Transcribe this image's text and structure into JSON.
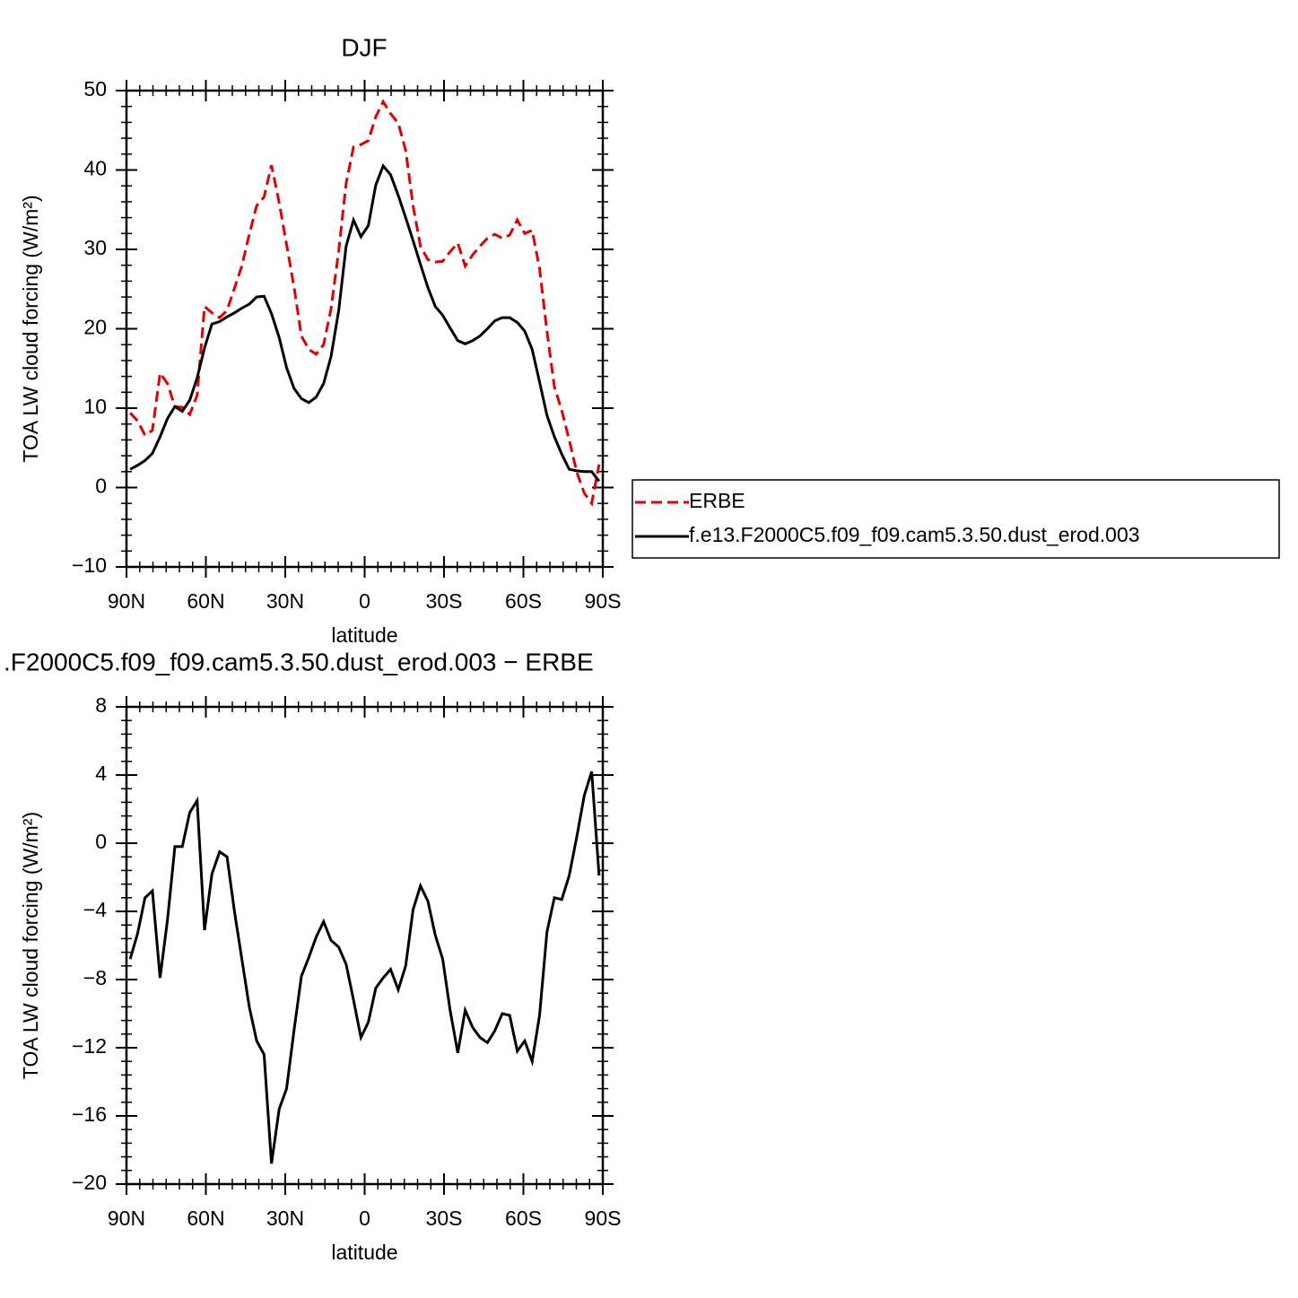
{
  "chart_data": [
    {
      "type": "line",
      "title": "DJF",
      "xlabel": "latitude",
      "ylabel": "TOA LW cloud forcing (W/m²)",
      "x": [
        88.6,
        85.8,
        83.0,
        80.2,
        77.3,
        74.5,
        71.7,
        68.9,
        66.1,
        63.3,
        60.5,
        57.7,
        54.8,
        52.0,
        49.2,
        46.4,
        43.6,
        40.8,
        38.0,
        35.2,
        32.3,
        29.5,
        26.7,
        23.9,
        21.1,
        18.3,
        15.5,
        12.7,
        9.8,
        7.0,
        4.2,
        1.4,
        -1.4,
        -4.2,
        -7.0,
        -9.8,
        -12.7,
        -15.5,
        -18.3,
        -21.1,
        -23.9,
        -26.7,
        -29.5,
        -32.3,
        -35.2,
        -38.0,
        -40.8,
        -43.6,
        -46.4,
        -49.2,
        -52.0,
        -54.8,
        -57.7,
        -60.5,
        -63.3,
        -66.1,
        -68.9,
        -71.7,
        -74.5,
        -77.3,
        -80.2,
        -83.0,
        -85.8,
        -88.6
      ],
      "series": [
        {
          "name": "ERBE",
          "color": "#e00000",
          "linestyle": "dashed",
          "values": [
            9.4,
            8.4,
            6.6,
            7.2,
            14.4,
            13.1,
            10.2,
            10.1,
            9.2,
            11.6,
            22.8,
            22.0,
            21.4,
            22.3,
            25.1,
            27.9,
            31.9,
            35.5,
            36.6,
            40.6,
            35.9,
            30.6,
            25.3,
            19.1,
            17.4,
            16.8,
            18.0,
            22.5,
            29.8,
            38.3,
            42.9,
            43.2,
            43.7,
            46.7,
            48.6,
            47.1,
            45.9,
            42.5,
            35.5,
            30.4,
            28.7,
            28.4,
            28.5,
            29.7,
            30.8,
            27.9,
            29.3,
            30.4,
            31.4,
            31.9,
            31.4,
            31.8,
            33.7,
            32.0,
            32.4,
            27.6,
            19.7,
            12.7,
            9.7,
            6.0,
            1.9,
            -0.7,
            -2.0,
            2.9
          ]
        },
        {
          "name": "f.e13.F2000C5.f09_f09.cam5.3.50.dust_erod.003",
          "color": "#000000",
          "linestyle": "solid",
          "values": [
            2.3,
            2.8,
            3.4,
            4.3,
            6.4,
            8.7,
            10.2,
            9.6,
            11.0,
            13.8,
            17.6,
            20.6,
            20.9,
            21.5,
            22.0,
            22.6,
            23.1,
            24.0,
            24.1,
            21.9,
            18.9,
            15.1,
            12.5,
            11.2,
            10.7,
            11.4,
            13.1,
            16.5,
            22.3,
            30.4,
            33.7,
            31.6,
            33.0,
            38.1,
            40.5,
            39.4,
            36.8,
            34.0,
            31.1,
            28.1,
            25.2,
            22.8,
            21.7,
            20.1,
            18.5,
            18.1,
            18.5,
            19.1,
            20.0,
            21.0,
            21.4,
            21.4,
            20.8,
            19.7,
            17.4,
            13.3,
            9.1,
            6.4,
            4.2,
            2.3,
            2.1,
            2.0,
            2.0,
            0.8
          ]
        }
      ],
      "xlim": [
        90,
        -90
      ],
      "xticks": [
        {
          "value": 90,
          "label": "90N"
        },
        {
          "value": 60,
          "label": "60N"
        },
        {
          "value": 30,
          "label": "30N"
        },
        0,
        {
          "value": -30,
          "label": "30S"
        },
        {
          "value": -60,
          "label": "60S"
        },
        {
          "value": -90,
          "label": "90S"
        }
      ],
      "ylim": [
        -10,
        50
      ],
      "yticks": [
        {
          "value": -10,
          "label": "−10"
        },
        0,
        10,
        20,
        30,
        40,
        50
      ],
      "legend": "right"
    },
    {
      "type": "line",
      "title": ".F2000C5.f09_f09.cam5.3.50.dust_erod.003 − ERBE",
      "xlabel": "latitude",
      "ylabel": "TOA LW cloud forcing (W/m²)",
      "x": [
        88.6,
        85.8,
        83.0,
        80.2,
        77.3,
        74.5,
        71.7,
        68.9,
        66.1,
        63.3,
        60.5,
        57.7,
        54.8,
        52.0,
        49.2,
        46.4,
        43.6,
        40.8,
        38.0,
        35.2,
        32.3,
        29.5,
        26.7,
        23.9,
        21.1,
        18.3,
        15.5,
        12.7,
        9.8,
        7.0,
        4.2,
        1.4,
        -1.4,
        -4.2,
        -7.0,
        -9.8,
        -12.7,
        -15.5,
        -18.3,
        -21.1,
        -23.9,
        -26.7,
        -29.5,
        -32.3,
        -35.2,
        -38.0,
        -40.8,
        -43.6,
        -46.4,
        -49.2,
        -52.0,
        -54.8,
        -57.7,
        -60.5,
        -63.3,
        -66.1,
        -68.9,
        -71.7,
        -74.5,
        -77.3,
        -80.2,
        -83.0,
        -85.8,
        -88.6
      ],
      "series": [
        {
          "color": "#000000",
          "linestyle": "solid",
          "values": [
            -6.8,
            -5.3,
            -3.2,
            -2.8,
            -7.9,
            -4.5,
            -0.2,
            -0.2,
            1.8,
            2.5,
            -5.1,
            -1.8,
            -0.5,
            -0.8,
            -4.0,
            -6.8,
            -9.6,
            -11.6,
            -12.4,
            -18.8,
            -15.6,
            -14.4,
            -11.0,
            -7.8,
            -6.7,
            -5.5,
            -4.6,
            -5.7,
            -6.1,
            -7.1,
            -9.2,
            -11.4,
            -10.5,
            -8.5,
            -7.9,
            -7.4,
            -8.6,
            -7.2,
            -3.9,
            -2.5,
            -3.4,
            -5.4,
            -6.8,
            -9.8,
            -12.3,
            -9.8,
            -10.8,
            -11.4,
            -11.7,
            -11.0,
            -10.0,
            -10.1,
            -12.2,
            -11.6,
            -12.8,
            -10.1,
            -5.2,
            -3.2,
            -3.3,
            -1.9,
            0.4,
            2.8,
            4.2,
            -1.9
          ]
        }
      ],
      "xlim": [
        90,
        -90
      ],
      "xticks": [
        {
          "value": 90,
          "label": "90N"
        },
        {
          "value": 60,
          "label": "60N"
        },
        {
          "value": 30,
          "label": "30N"
        },
        0,
        {
          "value": -30,
          "label": "30S"
        },
        {
          "value": -60,
          "label": "60S"
        },
        {
          "value": -90,
          "label": "90S"
        }
      ],
      "ylim": [
        -20,
        8
      ],
      "yticks": [
        {
          "value": -20,
          "label": "−20"
        },
        {
          "value": -16,
          "label": "−16"
        },
        {
          "value": -12,
          "label": "−12"
        },
        {
          "value": -8,
          "label": "−8"
        },
        {
          "value": -4,
          "label": "−4"
        },
        0,
        4,
        8
      ]
    }
  ]
}
